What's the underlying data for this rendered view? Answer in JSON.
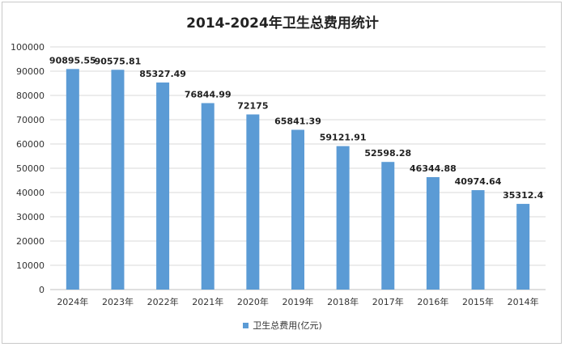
{
  "colors": {
    "bar": "#5b9bd5",
    "grid": "#d9d9d9",
    "axis": "#bfbfbf"
  },
  "chart_data": {
    "type": "bar",
    "title": "2014-2024年卫生总费用统计",
    "categories": [
      "2024年",
      "2023年",
      "2022年",
      "2021年",
      "2020年",
      "2019年",
      "2018年",
      "2017年",
      "2016年",
      "2015年",
      "2014年"
    ],
    "series": [
      {
        "name": "卫生总费用(亿元)",
        "values": [
          90895.55,
          90575.81,
          85327.49,
          76844.99,
          72175,
          65841.39,
          59121.91,
          52598.28,
          46344.88,
          40974.64,
          35312.4
        ]
      }
    ],
    "data_labels": [
      "90895.55",
      "90575.81",
      "85327.49",
      "76844.99",
      "72175",
      "65841.39",
      "59121.91",
      "52598.28",
      "46344.88",
      "40974.64",
      "35312.4"
    ],
    "ylim": [
      0,
      100000
    ],
    "yticks": [
      "0",
      "10000",
      "20000",
      "30000",
      "40000",
      "50000",
      "60000",
      "70000",
      "80000",
      "90000",
      "100000"
    ],
    "grid": true,
    "legend_position": "bottom"
  }
}
